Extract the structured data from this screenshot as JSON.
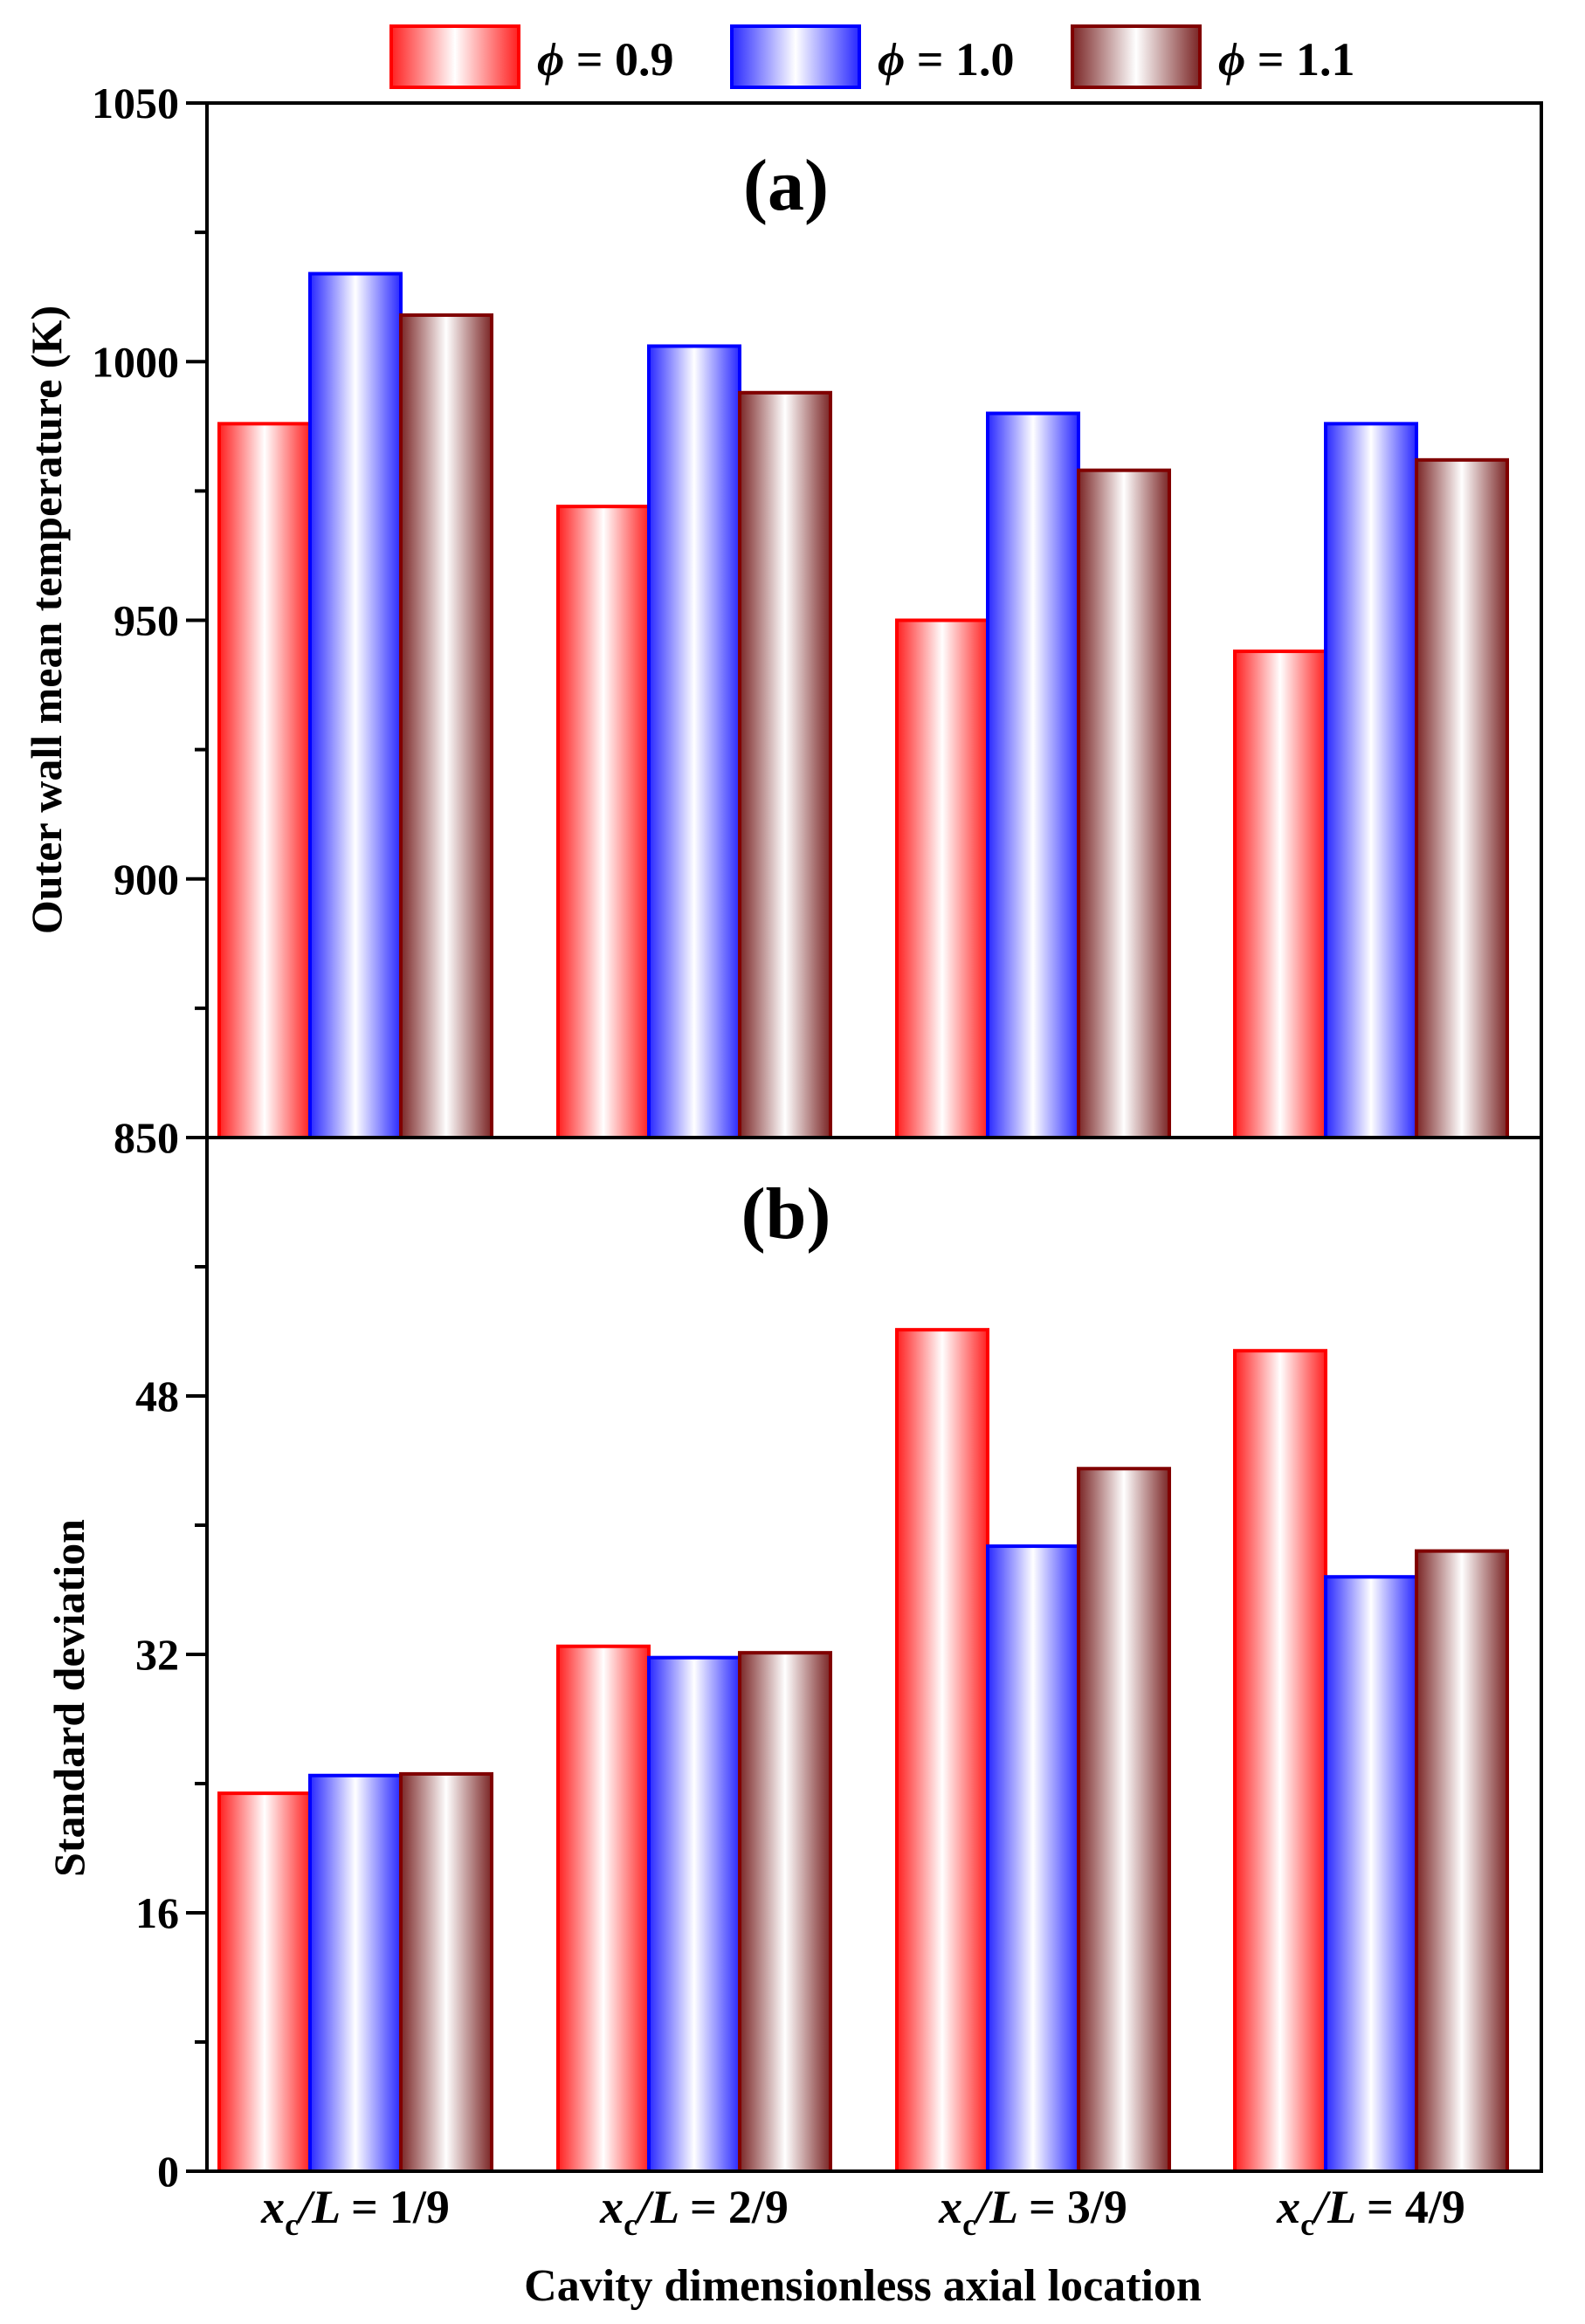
{
  "chart_data": [
    {
      "panel_label": "(a)",
      "type": "bar",
      "ylabel": "Outer wall mean temperature (K)",
      "ylim": [
        850,
        1050
      ],
      "yticks": [
        850,
        900,
        950,
        1000,
        1050
      ],
      "categories": [
        "1/9",
        "2/9",
        "3/9",
        "4/9"
      ],
      "series": [
        {
          "name": "0.9",
          "values": [
            988,
            972,
            950,
            944
          ]
        },
        {
          "name": "1.0",
          "values": [
            1017,
            1003,
            990,
            988
          ]
        },
        {
          "name": "1.1",
          "values": [
            1009,
            994,
            979,
            981
          ]
        }
      ]
    },
    {
      "panel_label": "(b)",
      "type": "bar",
      "ylabel": "Standard deviation",
      "ylim": [
        0,
        64
      ],
      "yticks": [
        0,
        16,
        32,
        48
      ],
      "categories": [
        "1/9",
        "2/9",
        "3/9",
        "4/9"
      ],
      "series": [
        {
          "name": "0.9",
          "values": [
            23.4,
            32.5,
            52.1,
            50.8
          ]
        },
        {
          "name": "1.0",
          "values": [
            24.5,
            31.8,
            38.7,
            36.8
          ]
        },
        {
          "name": "1.1",
          "values": [
            24.6,
            32.1,
            43.5,
            38.4
          ]
        }
      ]
    }
  ],
  "x_axis": {
    "category_prefix_var": "x",
    "category_prefix_sub": "c",
    "category_prefix_rest": "/L = ",
    "title": "Cavity dimensionless axial location"
  },
  "legend": {
    "symbol": "ϕ",
    "equals": " = ",
    "items": [
      "0.9",
      "1.0",
      "1.1"
    ]
  },
  "colors": {
    "series_edge": [
      "#ff0000",
      "#0000ff",
      "#800000"
    ],
    "series_fill": [
      "#ff2020",
      "#2828ff",
      "#7a2525"
    ],
    "axis": "#000000"
  }
}
